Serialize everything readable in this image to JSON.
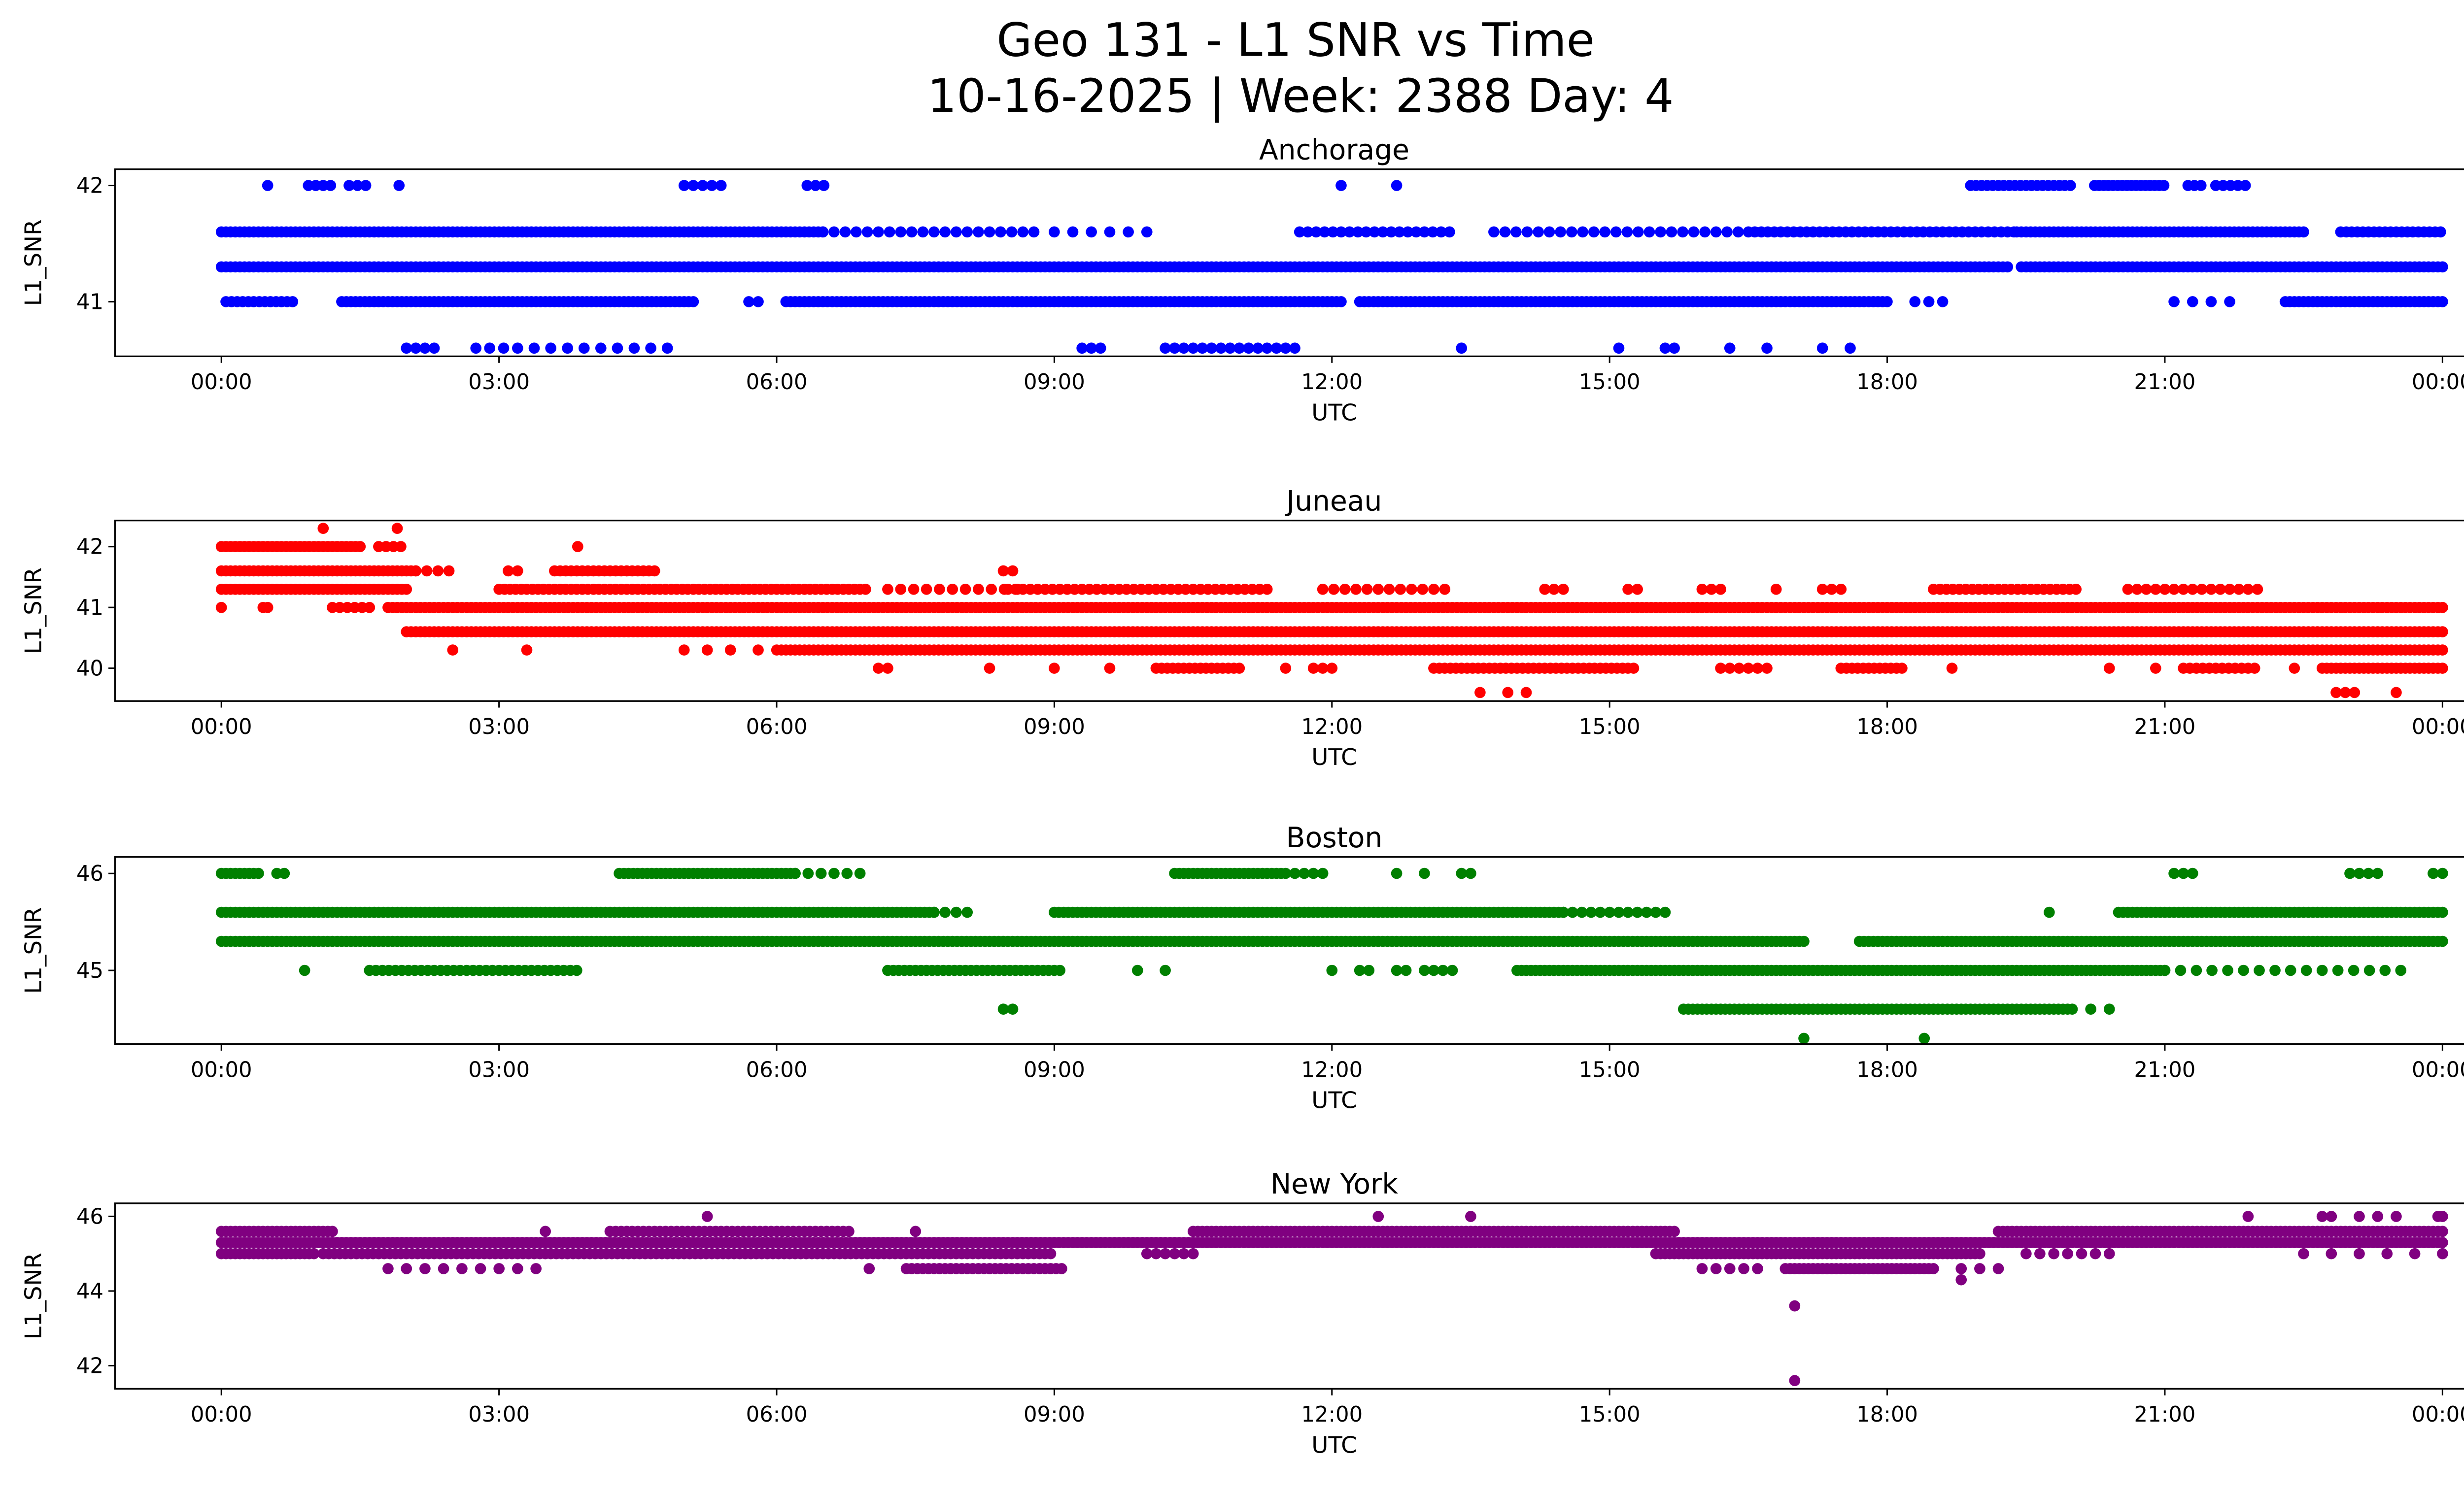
{
  "title": "Geo 131 - L1 SNR vs Time",
  "subtitle": "10-16-2025 | Week: 2388 Day: 4",
  "chart_data": [
    {
      "type": "scatter",
      "title": "Anchorage",
      "xlabel": "UTC",
      "ylabel": "L1_SNR",
      "color": "#0000ff",
      "xlim_hours": [
        -1.15,
        25.2
      ],
      "ylim": [
        40.53,
        42.14
      ],
      "xticks": [
        "00:00",
        "03:00",
        "06:00",
        "09:00",
        "12:00",
        "15:00",
        "18:00",
        "21:00",
        "00:00"
      ],
      "yticks": [
        41,
        42
      ],
      "series": [
        {
          "level": 42.0,
          "segments": [
            [
              0.5,
              0.5,
              1
            ],
            [
              0.94,
              1.2,
              0.08
            ],
            [
              1.38,
              1.56,
              0.09
            ],
            [
              1.92,
              1.92,
              1
            ],
            [
              5.0,
              5.41,
              0.1
            ],
            [
              6.33,
              6.51,
              0.09
            ],
            [
              12.1,
              12.1,
              1
            ],
            [
              12.7,
              12.7,
              1
            ],
            [
              18.9,
              20.0,
              0.06
            ],
            [
              20.24,
              21.02,
              0.05
            ],
            [
              21.25,
              21.4,
              0.07
            ],
            [
              21.55,
              21.87,
              0.08
            ]
          ]
        },
        {
          "level": 41.6,
          "segments": [
            [
              0,
              6.5,
              0.05
            ],
            [
              6.5,
              8.8,
              0.12
            ],
            [
              9.0,
              10.0,
              0.2
            ],
            [
              11.65,
              13.35,
              0.09
            ],
            [
              13.75,
              16.5,
              0.12
            ],
            [
              16.5,
              19.4,
              0.07
            ],
            [
              19.4,
              22.5,
              0.05
            ],
            [
              22.9,
              24,
              0.06
            ]
          ]
        },
        {
          "level": 41.3,
          "segments": [
            [
              0,
              19.3,
              0.05
            ],
            [
              19.45,
              24,
              0.05
            ]
          ]
        },
        {
          "level": 41.0,
          "segments": [
            [
              0.05,
              0.8,
              0.06
            ],
            [
              1.3,
              5.1,
              0.05
            ],
            [
              5.7,
              5.8,
              0.1
            ],
            [
              6.1,
              12.1,
              0.05
            ],
            [
              12.3,
              18.0,
              0.05
            ],
            [
              18.3,
              18.6,
              0.15
            ],
            [
              21.1,
              21.7,
              0.2
            ],
            [
              22.3,
              24,
              0.05
            ]
          ]
        },
        {
          "level": 40.6,
          "segments": [
            [
              2.0,
              2.3,
              0.1
            ],
            [
              2.75,
              3.1,
              0.15
            ],
            [
              3.2,
              4.9,
              0.18
            ],
            [
              9.3,
              9.5,
              0.1
            ],
            [
              10.2,
              11.6,
              0.1
            ],
            [
              13.4,
              13.4,
              1
            ],
            [
              15.1,
              15.1,
              1
            ],
            [
              15.6,
              15.7,
              0.1
            ],
            [
              16.3,
              16.3,
              1
            ],
            [
              16.7,
              16.7,
              1
            ],
            [
              17.3,
              17.3,
              1
            ],
            [
              17.6,
              17.6,
              1
            ]
          ]
        }
      ]
    },
    {
      "type": "scatter",
      "title": "Juneau",
      "xlabel": "UTC",
      "ylabel": "L1_SNR",
      "color": "#ff0000",
      "xlim_hours": [
        -1.15,
        25.2
      ],
      "ylim": [
        39.46,
        42.43
      ],
      "xticks": [
        "00:00",
        "03:00",
        "06:00",
        "09:00",
        "12:00",
        "15:00",
        "18:00",
        "21:00",
        "00:00"
      ],
      "yticks": [
        40,
        41,
        42
      ],
      "series": [
        {
          "level": 42.3,
          "segments": [
            [
              1.1,
              1.1,
              1
            ],
            [
              1.9,
              1.9,
              1
            ]
          ]
        },
        {
          "level": 42.0,
          "segments": [
            [
              0,
              1.5,
              0.05
            ],
            [
              1.7,
              2.0,
              0.08
            ],
            [
              3.85,
              3.85,
              1
            ]
          ]
        },
        {
          "level": 41.6,
          "segments": [
            [
              0,
              2.1,
              0.05
            ],
            [
              2.1,
              2.5,
              0.12
            ],
            [
              3.1,
              3.2,
              0.1
            ],
            [
              3.6,
              4.7,
              0.06
            ],
            [
              8.45,
              8.6,
              0.1
            ]
          ]
        },
        {
          "level": 41.3,
          "segments": [
            [
              0,
              2.0,
              0.05
            ],
            [
              3.0,
              7.0,
              0.06
            ],
            [
              7.2,
              8.6,
              0.14
            ],
            [
              8.5,
              11.3,
              0.08
            ],
            [
              11.9,
              13.3,
              0.12
            ],
            [
              14.3,
              14.5,
              0.1
            ],
            [
              15.2,
              15.3,
              0.1
            ],
            [
              16.0,
              16.2,
              0.1
            ],
            [
              16.8,
              16.8,
              1
            ],
            [
              17.3,
              17.5,
              0.1
            ],
            [
              18.5,
              20.1,
              0.07
            ],
            [
              20.6,
              22.0,
              0.1
            ]
          ]
        },
        {
          "level": 41.0,
          "segments": [
            [
              0,
              0,
              1
            ],
            [
              0.45,
              0.5,
              0.05
            ],
            [
              1.2,
              1.6,
              0.08
            ],
            [
              1.8,
              24,
              0.05
            ]
          ]
        },
        {
          "level": 40.6,
          "segments": [
            [
              2.0,
              24,
              0.05
            ]
          ]
        },
        {
          "level": 40.3,
          "segments": [
            [
              2.5,
              2.5,
              1
            ],
            [
              3.3,
              3.3,
              1
            ],
            [
              5.0,
              5.5,
              0.25
            ],
            [
              5.8,
              5.8,
              1
            ],
            [
              6.0,
              24,
              0.05
            ]
          ]
        },
        {
          "level": 40.0,
          "segments": [
            [
              7.1,
              7.2,
              0.1
            ],
            [
              8.3,
              8.3,
              1
            ],
            [
              9.0,
              9.0,
              1
            ],
            [
              9.6,
              9.6,
              1
            ],
            [
              10.1,
              11.0,
              0.06
            ],
            [
              11.5,
              11.5,
              1
            ],
            [
              11.8,
              12.0,
              0.1
            ],
            [
              13.1,
              15.3,
              0.06
            ],
            [
              16.2,
              16.7,
              0.1
            ],
            [
              17.5,
              18.2,
              0.06
            ],
            [
              18.7,
              18.7,
              1
            ],
            [
              20.4,
              20.4,
              1
            ],
            [
              20.9,
              20.9,
              1
            ],
            [
              21.2,
              22.0,
              0.07
            ],
            [
              22.4,
              22.4,
              1
            ],
            [
              22.7,
              24,
              0.05
            ]
          ]
        },
        {
          "level": 39.6,
          "segments": [
            [
              13.6,
              13.6,
              1
            ],
            [
              13.9,
              13.9,
              1
            ],
            [
              14.1,
              14.1,
              1
            ],
            [
              22.85,
              23.05,
              0.1
            ],
            [
              23.5,
              23.5,
              1
            ]
          ]
        }
      ]
    },
    {
      "type": "scatter",
      "title": "Boston",
      "xlabel": "UTC",
      "ylabel": "L1_SNR",
      "color": "#008000",
      "xlim_hours": [
        -1.15,
        25.2
      ],
      "ylim": [
        44.24,
        46.17
      ],
      "xticks": [
        "00:00",
        "03:00",
        "06:00",
        "09:00",
        "12:00",
        "15:00",
        "18:00",
        "21:00",
        "00:00"
      ],
      "yticks": [
        45,
        46
      ],
      "series": [
        {
          "level": 46.0,
          "segments": [
            [
              0,
              0.4,
              0.05
            ],
            [
              0.6,
              0.75,
              0.08
            ],
            [
              4.3,
              6.2,
              0.05
            ],
            [
              6.2,
              6.9,
              0.14
            ],
            [
              10.3,
              11.5,
              0.05
            ],
            [
              11.6,
              11.9,
              0.1
            ],
            [
              12.7,
              12.7,
              1
            ],
            [
              13.0,
              13.0,
              1
            ],
            [
              13.4,
              13.5,
              0.1
            ],
            [
              21.1,
              21.3,
              0.1
            ],
            [
              23.0,
              23.3,
              0.1
            ],
            [
              23.9,
              24,
              0.1
            ]
          ]
        },
        {
          "level": 45.6,
          "segments": [
            [
              0,
              3.35,
              0.05
            ],
            [
              3.4,
              7.7,
              0.05
            ],
            [
              7.7,
              8.1,
              0.12
            ],
            [
              9.0,
              14.5,
              0.05
            ],
            [
              14.5,
              15.6,
              0.1
            ],
            [
              19.75,
              19.75,
              1
            ],
            [
              20.5,
              24,
              0.05
            ]
          ]
        },
        {
          "level": 45.3,
          "segments": [
            [
              0,
              17.1,
              0.05
            ],
            [
              17.7,
              24,
              0.05
            ]
          ]
        },
        {
          "level": 45.0,
          "segments": [
            [
              0.9,
              0.9,
              1
            ],
            [
              1.6,
              3.9,
              0.07
            ],
            [
              7.2,
              9.1,
              0.06
            ],
            [
              9.9,
              9.9,
              1
            ],
            [
              10.2,
              10.2,
              1
            ],
            [
              12.0,
              12.0,
              1
            ],
            [
              12.3,
              12.4,
              0.1
            ],
            [
              12.7,
              12.8,
              0.1
            ],
            [
              13.0,
              13.3,
              0.1
            ],
            [
              14.0,
              21.0,
              0.05
            ],
            [
              21.0,
              23.6,
              0.17
            ]
          ]
        },
        {
          "level": 44.6,
          "segments": [
            [
              8.45,
              8.55,
              0.1
            ],
            [
              15.8,
              20.0,
              0.05
            ],
            [
              20.2,
              20.4,
              0.2
            ]
          ]
        },
        {
          "level": 44.3,
          "segments": [
            [
              17.1,
              17.1,
              1
            ],
            [
              18.4,
              18.4,
              1
            ]
          ]
        }
      ]
    },
    {
      "type": "scatter",
      "title": "New York",
      "xlabel": "UTC",
      "ylabel": "L1_SNR",
      "color": "#800080",
      "xlim_hours": [
        -1.15,
        25.2
      ],
      "ylim": [
        41.38,
        46.35
      ],
      "xticks": [
        "00:00",
        "03:00",
        "06:00",
        "09:00",
        "12:00",
        "15:00",
        "18:00",
        "21:00",
        "00:00"
      ],
      "yticks": [
        42,
        44,
        46
      ],
      "series": [
        {
          "level": 46.0,
          "segments": [
            [
              5.25,
              5.25,
              1
            ],
            [
              12.5,
              12.5,
              1
            ],
            [
              13.5,
              13.5,
              1
            ],
            [
              21.9,
              21.9,
              1
            ],
            [
              22.7,
              22.8,
              0.1
            ],
            [
              23.1,
              23.5,
              0.2
            ],
            [
              23.95,
              24,
              0.05
            ]
          ]
        },
        {
          "level": 45.6,
          "segments": [
            [
              0,
              1.2,
              0.05
            ],
            [
              3.5,
              3.5,
              1
            ],
            [
              4.2,
              6.8,
              0.06
            ],
            [
              7.5,
              7.5,
              1
            ],
            [
              10.5,
              15.7,
              0.05
            ],
            [
              19.2,
              24,
              0.05
            ]
          ]
        },
        {
          "level": 45.3,
          "segments": [
            [
              0,
              24,
              0.05
            ]
          ]
        },
        {
          "level": 45.0,
          "segments": [
            [
              0,
              1.0,
              0.05
            ],
            [
              1.1,
              9.0,
              0.06
            ],
            [
              10.0,
              10.5,
              0.1
            ],
            [
              15.5,
              19.0,
              0.05
            ],
            [
              19.5,
              20.5,
              0.15
            ],
            [
              22.5,
              24,
              0.3
            ]
          ]
        },
        {
          "level": 44.6,
          "segments": [
            [
              1.8,
              3.5,
              0.2
            ],
            [
              7.0,
              7.0,
              1
            ],
            [
              7.4,
              9.1,
              0.06
            ],
            [
              16.0,
              16.6,
              0.15
            ],
            [
              16.9,
              18.5,
              0.05
            ],
            [
              18.8,
              19.3,
              0.2
            ]
          ]
        },
        {
          "level": 44.3,
          "segments": [
            [
              18.8,
              18.8,
              1
            ]
          ]
        },
        {
          "level": 43.6,
          "segments": [
            [
              17.0,
              17.0,
              1
            ]
          ]
        },
        {
          "level": 41.6,
          "segments": [
            [
              17.0,
              17.0,
              1
            ]
          ]
        }
      ]
    }
  ]
}
